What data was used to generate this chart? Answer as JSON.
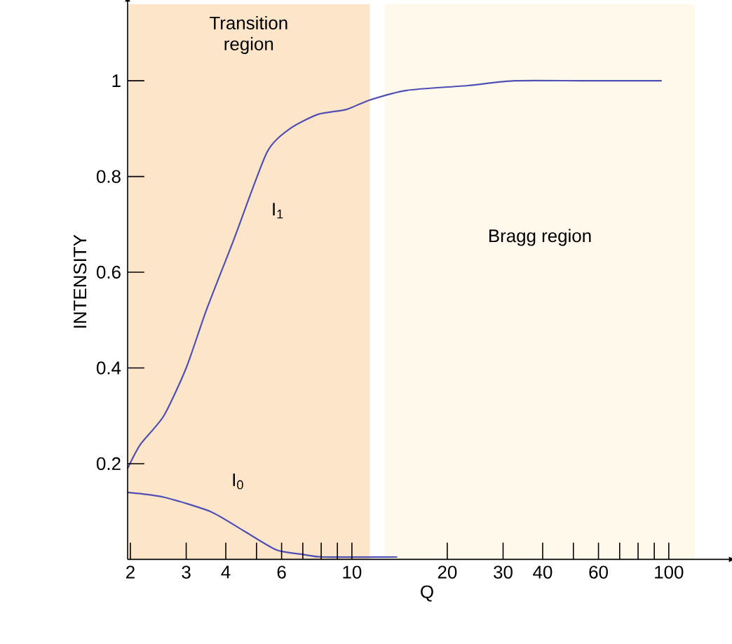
{
  "chart_data": {
    "type": "line",
    "xlabel": "Q",
    "ylabel": "INTENSITY",
    "log": "x",
    "xlim": [
      1.96,
      152
    ],
    "ylim": [
      0,
      1.16
    ],
    "xticks": [
      2,
      3,
      4,
      {
        "value": 5,
        "label": null
      },
      6,
      {
        "value": 7,
        "label": null
      },
      {
        "value": 8,
        "label": null
      },
      {
        "value": 9,
        "label": null
      },
      10,
      20,
      30,
      40,
      {
        "value": 50,
        "label": null
      },
      60,
      {
        "value": 70,
        "label": null
      },
      {
        "value": 80,
        "label": null
      },
      {
        "value": 90,
        "label": null
      },
      100
    ],
    "yticks": [
      0.2,
      0.4,
      0.6,
      0.8,
      1
    ],
    "bands": [
      {
        "axis": "x",
        "from": 1.96,
        "to": 11.4,
        "label": "Transition region",
        "color": "#fce5c8"
      },
      {
        "axis": "x",
        "from": 12.7,
        "to": 121,
        "label": "Bragg region",
        "color": "#fef9ea"
      }
    ],
    "series": [
      {
        "name": "I$_{1}$",
        "color": "#5050b4",
        "x": [
          1.96,
          2.15,
          2.55,
          3.0,
          3.47,
          4.25,
          5.39,
          6.38,
          7.83,
          9.6,
          11.4,
          14.9,
          23.2,
          32.6,
          54.2,
          95
        ],
        "values": [
          0.19,
          0.24,
          0.3,
          0.4,
          0.52,
          0.67,
          0.85,
          0.9,
          0.93,
          0.94,
          0.96,
          0.98,
          0.99,
          1.0,
          1.0,
          1.0
        ]
      },
      {
        "name": "I$_{0}$",
        "color": "#5050b4",
        "x": [
          1.96,
          2.55,
          3.58,
          4.55,
          5.77,
          7.07,
          8.1,
          13.9
        ],
        "values": [
          0.14,
          0.13,
          0.1,
          0.06,
          0.02,
          0.01,
          0.005,
          0.005
        ]
      }
    ]
  }
}
